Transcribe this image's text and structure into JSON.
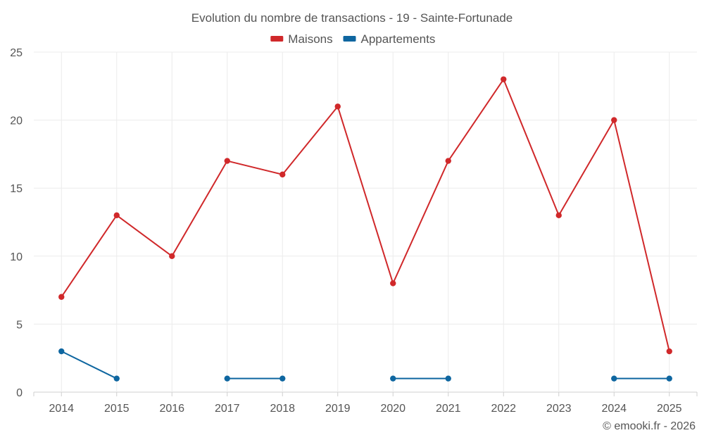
{
  "chart_data": {
    "type": "line",
    "title": "Evolution du nombre de transactions - 19 - Sainte-Fortunade",
    "categories": [
      "2014",
      "2015",
      "2016",
      "2017",
      "2018",
      "2019",
      "2020",
      "2021",
      "2022",
      "2023",
      "2024",
      "2025"
    ],
    "ylim": [
      0,
      25
    ],
    "yticks": [
      0,
      5,
      10,
      15,
      20,
      25
    ],
    "grid": true,
    "legend_position": "top-center",
    "series": [
      {
        "name": "Maisons",
        "color": "#d0282a",
        "values": [
          7,
          13,
          10,
          17,
          16,
          21,
          8,
          17,
          23,
          13,
          20,
          3
        ]
      },
      {
        "name": "Appartements",
        "color": "#0e66a0",
        "values": [
          3,
          1,
          null,
          1,
          1,
          null,
          1,
          1,
          null,
          null,
          1,
          1
        ]
      }
    ],
    "credit": "© emooki.fr - 2026"
  }
}
